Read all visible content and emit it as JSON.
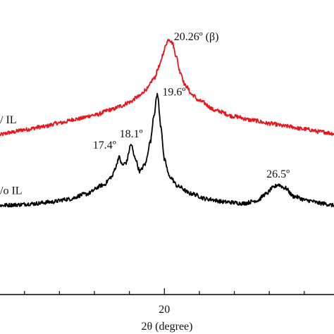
{
  "chart_data": {
    "type": "line",
    "title": "",
    "xlabel": "2θ (degree)",
    "ylabel": "",
    "xlim": [
      10.6,
      29.7
    ],
    "y_units": "arbitrary intensity (curves vertically offset)",
    "ylim": [
      0,
      1
    ],
    "x_ticks": [
      {
        "value": 20,
        "label": "20"
      }
    ],
    "x_minor_ticks": [
      12,
      14,
      16,
      18,
      22,
      24,
      26,
      28
    ],
    "grid": false,
    "colors": {
      "with_il": "#e8151b",
      "without_il": "#000000"
    },
    "series": [
      {
        "name": "w/ IL",
        "label_text": "/ IL",
        "color": "#e8151b",
        "points": [
          [
            10.6,
            0.57
          ],
          [
            11.2,
            0.578
          ],
          [
            12.0,
            0.588
          ],
          [
            13.0,
            0.598
          ],
          [
            14.0,
            0.612
          ],
          [
            15.0,
            0.626
          ],
          [
            16.0,
            0.64
          ],
          [
            17.0,
            0.66
          ],
          [
            17.5,
            0.672
          ],
          [
            18.0,
            0.686
          ],
          [
            18.5,
            0.705
          ],
          [
            19.0,
            0.733
          ],
          [
            19.4,
            0.77
          ],
          [
            19.7,
            0.812
          ],
          [
            19.95,
            0.862
          ],
          [
            20.1,
            0.895
          ],
          [
            20.26,
            0.912
          ],
          [
            20.45,
            0.898
          ],
          [
            20.65,
            0.855
          ],
          [
            20.9,
            0.795
          ],
          [
            21.2,
            0.745
          ],
          [
            21.6,
            0.712
          ],
          [
            22.0,
            0.69
          ],
          [
            23.0,
            0.655
          ],
          [
            24.0,
            0.635
          ],
          [
            25.0,
            0.622
          ],
          [
            26.0,
            0.61
          ],
          [
            27.0,
            0.6
          ],
          [
            28.0,
            0.59
          ],
          [
            29.0,
            0.58
          ],
          [
            29.7,
            0.574
          ]
        ]
      },
      {
        "name": "w/o IL",
        "label_text": "/o IL",
        "color": "#000000",
        "points": [
          [
            10.6,
            0.318
          ],
          [
            11.5,
            0.32
          ],
          [
            12.5,
            0.324
          ],
          [
            13.5,
            0.33
          ],
          [
            14.5,
            0.34
          ],
          [
            15.5,
            0.358
          ],
          [
            16.5,
            0.39
          ],
          [
            17.0,
            0.42
          ],
          [
            17.2,
            0.452
          ],
          [
            17.4,
            0.49
          ],
          [
            17.6,
            0.462
          ],
          [
            17.8,
            0.47
          ],
          [
            18.1,
            0.535
          ],
          [
            18.3,
            0.49
          ],
          [
            18.6,
            0.44
          ],
          [
            18.9,
            0.465
          ],
          [
            19.2,
            0.545
          ],
          [
            19.4,
            0.64
          ],
          [
            19.6,
            0.715
          ],
          [
            19.8,
            0.6
          ],
          [
            20.0,
            0.48
          ],
          [
            20.3,
            0.42
          ],
          [
            20.8,
            0.385
          ],
          [
            21.5,
            0.36
          ],
          [
            22.5,
            0.34
          ],
          [
            23.5,
            0.33
          ],
          [
            24.5,
            0.325
          ],
          [
            25.3,
            0.335
          ],
          [
            25.8,
            0.358
          ],
          [
            26.2,
            0.38
          ],
          [
            26.5,
            0.392
          ],
          [
            26.9,
            0.38
          ],
          [
            27.4,
            0.35
          ],
          [
            28.2,
            0.335
          ],
          [
            29.0,
            0.325
          ],
          [
            29.7,
            0.318
          ]
        ]
      }
    ],
    "annotations": [
      {
        "text": "20.26º (β)",
        "x": 20.26,
        "y": 0.912,
        "side": "right"
      },
      {
        "text": "19.6º",
        "x": 19.6,
        "y": 0.715,
        "side": "right"
      },
      {
        "text": "18.1º",
        "x": 18.1,
        "y": 0.535,
        "side": "above"
      },
      {
        "text": "17.4º",
        "x": 17.4,
        "y": 0.49,
        "side": "left"
      },
      {
        "text": "26.5º",
        "x": 26.5,
        "y": 0.392,
        "side": "above"
      }
    ]
  }
}
